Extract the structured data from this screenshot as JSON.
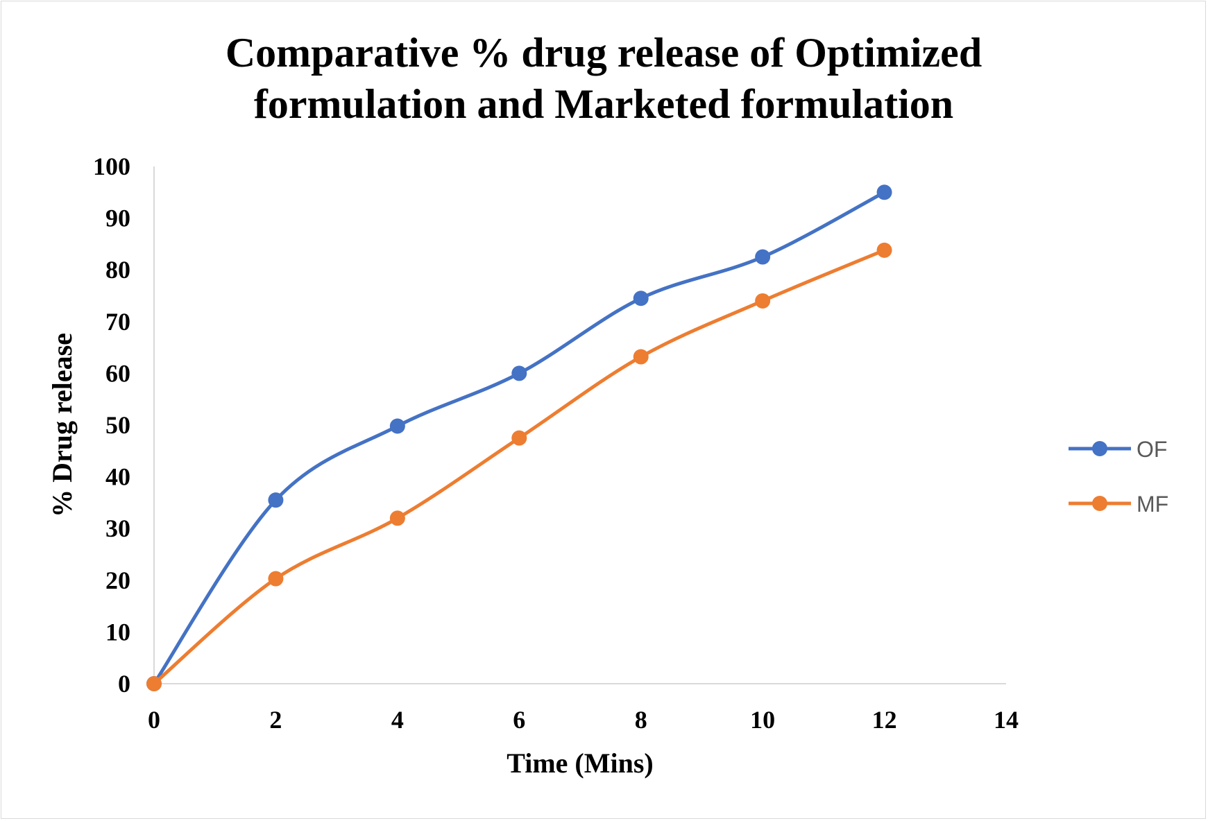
{
  "chart_data": {
    "type": "line",
    "title_lines": [
      "Comparative % drug release of Optimized",
      "formulation and Marketed  formulation"
    ],
    "xlabel": "Time (Mins)",
    "ylabel": "% Drug release",
    "xlim": [
      0,
      14
    ],
    "ylim": [
      0,
      100
    ],
    "x_ticks": [
      0,
      2,
      4,
      6,
      8,
      10,
      12,
      14
    ],
    "y_ticks": [
      0,
      10,
      20,
      30,
      40,
      50,
      60,
      70,
      80,
      90,
      100
    ],
    "grid": false,
    "smooth": true,
    "legend_position": "right",
    "x": [
      0,
      2,
      4,
      6,
      8,
      10,
      12
    ],
    "series": [
      {
        "name": "OF",
        "color": "#4472C4",
        "values": [
          0,
          35.5,
          49.8,
          60.0,
          74.5,
          82.5,
          95.0
        ]
      },
      {
        "name": "MF",
        "color": "#ED7D31",
        "values": [
          0,
          20.3,
          32.0,
          47.5,
          63.2,
          74.0,
          83.8
        ]
      }
    ]
  }
}
